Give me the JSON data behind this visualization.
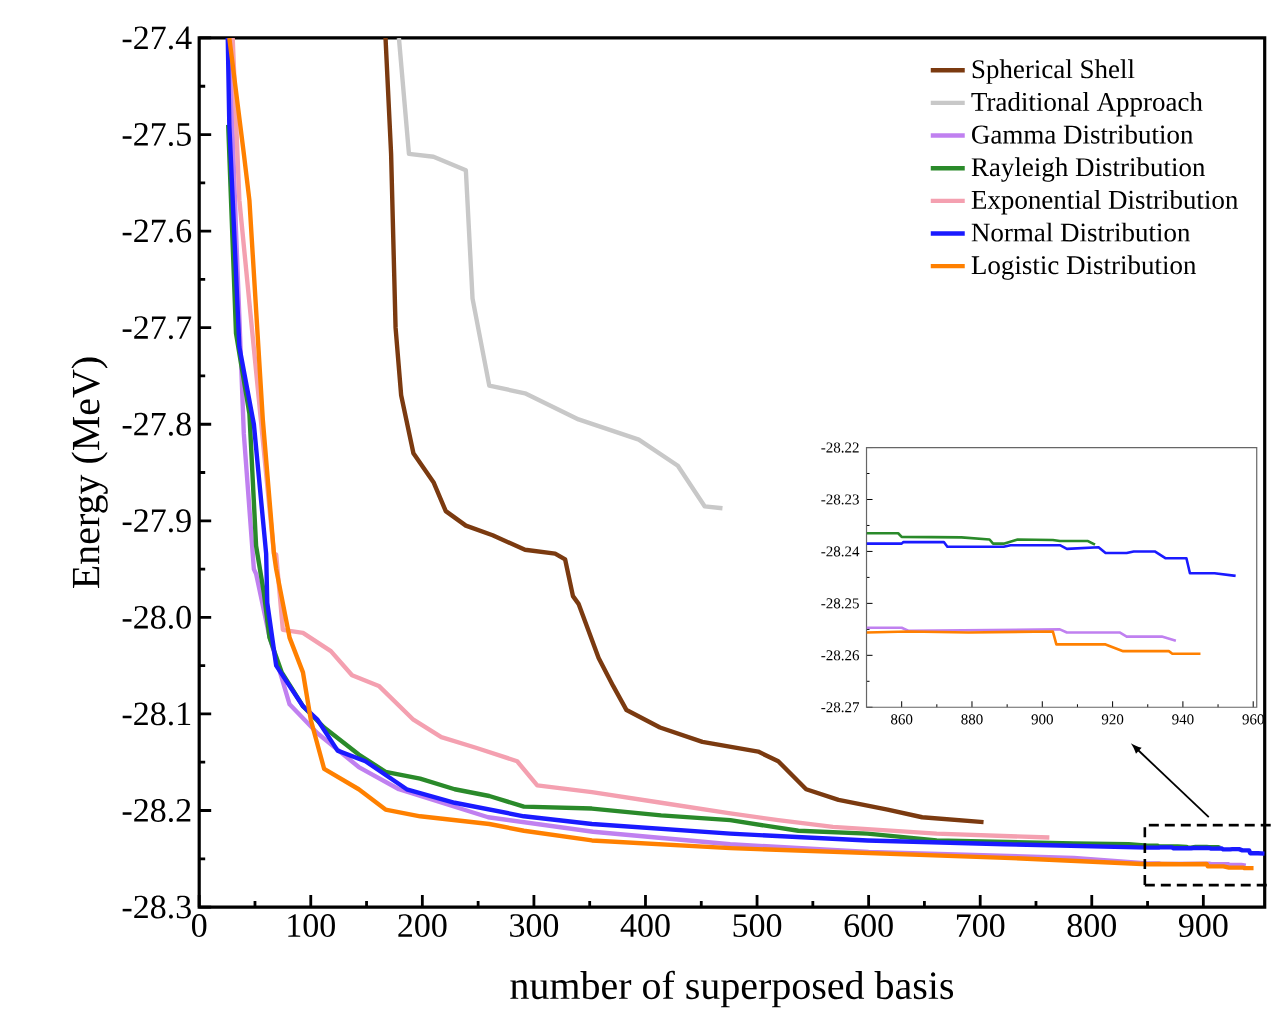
{
  "chart_data": [
    {
      "type": "line",
      "xlabel": "number of superposed basis",
      "ylabel": "Energy (MeV)",
      "xlim": [
        0,
        955
      ],
      "ylim": [
        -28.3,
        -27.4
      ],
      "xticks": [
        0,
        100,
        200,
        300,
        400,
        500,
        600,
        700,
        800,
        900
      ],
      "yticks": [
        -27.4,
        -27.5,
        -27.6,
        -27.7,
        -27.8,
        -27.9,
        {
          "value": -28,
          "label": "-28.0"
        },
        -28.1,
        -28.2,
        -28.3
      ],
      "legend": "top right",
      "marker": "none",
      "line_style": "solid",
      "series": [
        {
          "name": "Spherical Shell",
          "color": "#7b3a10",
          "x": [
            167,
            172,
            176,
            181,
            192,
            210,
            221,
            239,
            263,
            292,
            319,
            328,
            335,
            340,
            358,
            371,
            383,
            413,
            451,
            501,
            519,
            544,
            573,
            617,
            648,
            703
          ],
          "values": [
            -27.4,
            -27.52,
            -27.7,
            -27.77,
            -27.83,
            -27.86,
            -27.89,
            -27.905,
            -27.915,
            -27.93,
            -27.934,
            -27.94,
            -27.978,
            -27.986,
            -28.042,
            -28.071,
            -28.096,
            -28.114,
            -28.129,
            -28.139,
            -28.149,
            -28.178,
            -28.189,
            -28.199,
            -28.207,
            -28.212
          ]
        },
        {
          "name": "Traditional Approach",
          "color": "#c8c8c8",
          "x": [
            179,
            188,
            210,
            239,
            245,
            260,
            292,
            340,
            394,
            429,
            453,
            469
          ],
          "values": [
            -27.4,
            -27.52,
            -27.523,
            -27.537,
            -27.67,
            -27.76,
            -27.768,
            -27.795,
            -27.816,
            -27.843,
            -27.885,
            -27.887
          ]
        },
        {
          "name": "Gamma Distribution",
          "color": "#c080f0",
          "x": [
            27,
            33,
            40,
            49,
            51,
            63,
            81,
            106,
            143,
            179,
            259,
            353,
            476,
            600,
            784,
            850,
            860,
            862,
            905,
            907,
            922,
            924,
            934,
            938
          ],
          "values": [
            -27.4,
            -27.6,
            -27.81,
            -27.95,
            -27.955,
            -28.02,
            -28.09,
            -28.12,
            -28.155,
            -28.178,
            -28.207,
            -28.222,
            -28.235,
            -28.243,
            -28.249,
            -28.2547,
            -28.2547,
            -28.2553,
            -28.255,
            -28.2556,
            -28.2556,
            -28.2564,
            -28.2564,
            -28.2572
          ]
        },
        {
          "name": "Rayleigh Distribution",
          "color": "#2a8a2a",
          "x": [
            26,
            33,
            45,
            51,
            58,
            63,
            74,
            93,
            112,
            143,
            167,
            198,
            229,
            260,
            291,
            352,
            414,
            476,
            537,
            599,
            661,
            784,
            833,
            850,
            859,
            860,
            877,
            885,
            886,
            889,
            893,
            903,
            905,
            913,
            915
          ],
          "values": [
            -27.49,
            -27.706,
            -27.789,
            -27.926,
            -27.975,
            -28.021,
            -28.057,
            -28.092,
            -28.114,
            -28.142,
            -28.16,
            -28.167,
            -28.178,
            -28.185,
            -28.196,
            -28.198,
            -28.205,
            -28.21,
            -28.221,
            -28.224,
            -28.231,
            -28.234,
            -28.235,
            -28.2365,
            -28.2365,
            -28.2372,
            -28.2373,
            -28.2377,
            -28.2385,
            -28.2385,
            -28.2377,
            -28.2378,
            -28.238,
            -28.238,
            -28.2387
          ]
        },
        {
          "name": "Exponential Distribution",
          "color": "#f4a0b0",
          "x": [
            30,
            36,
            67,
            69,
            75,
            93,
            118,
            137,
            161,
            192,
            217,
            248,
            285,
            303,
            352,
            414,
            476,
            519,
            568,
            661,
            762
          ],
          "values": [
            -27.4,
            -27.568,
            -27.934,
            -27.935,
            -28.013,
            -28.016,
            -28.035,
            -28.06,
            -28.071,
            -28.106,
            -28.124,
            -28.135,
            -28.149,
            -28.174,
            -28.181,
            -28.192,
            -28.203,
            -28.21,
            -28.217,
            -28.224,
            -28.228
          ]
        },
        {
          "name": "Normal Distribution",
          "color": "#1a1aff",
          "x": [
            25.6,
            27,
            36,
            49,
            60,
            61,
            69,
            93,
            106,
            124,
            149,
            186,
            229,
            291,
            352,
            476,
            599,
            722,
            850,
            860,
            860.5,
            872,
            873,
            889,
            891,
            905,
            907,
            916,
            918,
            924,
            926,
            932,
            935,
            941,
            942,
            949,
            955
          ],
          "values": [
            -27.4,
            -27.49,
            -27.72,
            -27.8,
            -27.934,
            -27.985,
            -28.05,
            -28.092,
            -28.106,
            -28.138,
            -28.149,
            -28.178,
            -28.192,
            -28.206,
            -28.214,
            -28.224,
            -28.231,
            -28.235,
            -28.2385,
            -28.2385,
            -28.2382,
            -28.2382,
            -28.2391,
            -28.2391,
            -28.2388,
            -28.2388,
            -28.2395,
            -28.2392,
            -28.2403,
            -28.2403,
            -28.24,
            -28.24,
            -28.2413,
            -28.2413,
            -28.2442,
            -28.2442,
            -28.2447
          ]
        },
        {
          "name": "Logistic Distribution",
          "color": "#ff8000",
          "x": [
            27,
            40,
            45,
            57,
            67,
            69,
            81,
            93,
            100,
            112,
            143,
            167,
            198,
            260,
            291,
            352,
            476,
            599,
            722,
            850,
            862,
            879,
            903,
            904,
            918,
            923,
            936,
            937,
            945
          ],
          "values": [
            -27.4,
            -27.52,
            -27.568,
            -27.795,
            -27.934,
            -27.95,
            -28.021,
            -28.057,
            -28.106,
            -28.157,
            -28.178,
            -28.199,
            -28.206,
            -28.214,
            -28.221,
            -28.231,
            -28.239,
            -28.244,
            -28.249,
            -28.2556,
            -28.2554,
            -28.2556,
            -28.2554,
            -28.2579,
            -28.2579,
            -28.2592,
            -28.2592,
            -28.2597,
            -28.2597
          ]
        }
      ]
    },
    {
      "type": "line",
      "xlim": [
        850,
        961
      ],
      "ylim": [
        -28.27,
        -28.22
      ],
      "xticks": [
        860,
        880,
        900,
        920,
        940,
        960
      ],
      "yticks": [
        -28.22,
        -28.23,
        -28.24,
        -28.25,
        -28.26,
        -28.27
      ],
      "marker": "none",
      "line_style": "solid",
      "series": [
        {
          "color": "#2a8a2a",
          "x": [
            850,
            859,
            860,
            877,
            885,
            886,
            889,
            893,
            903,
            905,
            913,
            915
          ],
          "values": [
            -28.2365,
            -28.2365,
            -28.2372,
            -28.2373,
            -28.2377,
            -28.2385,
            -28.2385,
            -28.2377,
            -28.2378,
            -28.238,
            -28.238,
            -28.2387
          ]
        },
        {
          "color": "#1a1aff",
          "x": [
            850,
            860,
            860.5,
            872,
            873,
            889,
            891,
            905,
            907,
            916,
            918,
            924,
            926,
            932,
            935,
            941,
            942,
            949,
            955
          ],
          "values": [
            -28.2385,
            -28.2385,
            -28.2382,
            -28.2382,
            -28.2391,
            -28.2391,
            -28.2388,
            -28.2388,
            -28.2395,
            -28.2392,
            -28.2403,
            -28.2403,
            -28.24,
            -28.24,
            -28.2413,
            -28.2413,
            -28.2442,
            -28.2442,
            -28.2447
          ]
        },
        {
          "color": "#c080f0",
          "x": [
            850,
            860,
            862,
            905,
            907,
            922,
            924,
            934,
            938
          ],
          "values": [
            -28.2547,
            -28.2547,
            -28.2553,
            -28.255,
            -28.2556,
            -28.2556,
            -28.2564,
            -28.2564,
            -28.2572
          ]
        },
        {
          "color": "#ff8000",
          "x": [
            850,
            862,
            879,
            903,
            904,
            918,
            923,
            936,
            937,
            945
          ],
          "values": [
            -28.2556,
            -28.2554,
            -28.2556,
            -28.2554,
            -28.2579,
            -28.2579,
            -28.2592,
            -28.2592,
            -28.2597,
            -28.2597
          ]
        }
      ]
    }
  ]
}
